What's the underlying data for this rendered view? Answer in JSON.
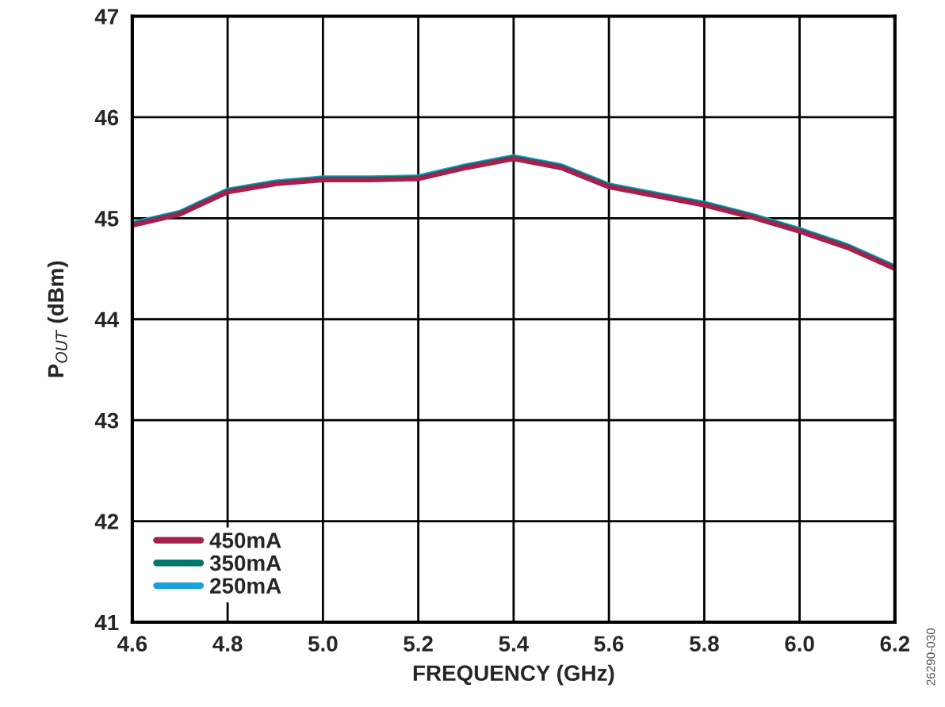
{
  "chart_data": {
    "type": "line",
    "xlabel": "FREQUENCY (GHz)",
    "ylabel": "P$_{OUT}$ (dBm)",
    "x": [
      4.6,
      4.7,
      4.8,
      4.9,
      5.0,
      5.1,
      5.2,
      5.3,
      5.4,
      5.5,
      5.6,
      5.7,
      5.8,
      5.9,
      6.0,
      6.1,
      6.2
    ],
    "series": [
      {
        "name": "450mA",
        "color": "#a5204c",
        "values": [
          44.93,
          45.04,
          45.26,
          45.34,
          45.38,
          45.38,
          45.39,
          45.5,
          45.59,
          45.5,
          45.31,
          45.22,
          45.13,
          45.01,
          44.87,
          44.71,
          44.5
        ]
      },
      {
        "name": "350mA",
        "color": "#00786a",
        "values": [
          44.94,
          45.05,
          45.27,
          45.35,
          45.39,
          45.39,
          45.4,
          45.51,
          45.6,
          45.51,
          45.32,
          45.23,
          45.14,
          45.02,
          44.88,
          44.72,
          44.51
        ]
      },
      {
        "name": "250mA",
        "color": "#1ba3d9",
        "values": [
          44.95,
          45.06,
          45.28,
          45.36,
          45.4,
          45.4,
          45.41,
          45.52,
          45.61,
          45.52,
          45.33,
          45.24,
          45.15,
          45.03,
          44.89,
          44.73,
          44.52
        ]
      }
    ],
    "xlim": [
      4.6,
      6.2
    ],
    "xticks": [
      4.6,
      4.8,
      {
        "value": 5,
        "label": "5.0"
      },
      5.2,
      5.4,
      5.6,
      5.8,
      {
        "value": 6,
        "label": "6.0"
      },
      6.2
    ],
    "ylim": [
      41,
      47
    ],
    "yticks": [
      41,
      42,
      43,
      44,
      45,
      46,
      47
    ],
    "grid": true,
    "legend": "bottom left",
    "marker": "none",
    "line_style": "solid",
    "annotations": [
      "26290-030"
    ]
  }
}
